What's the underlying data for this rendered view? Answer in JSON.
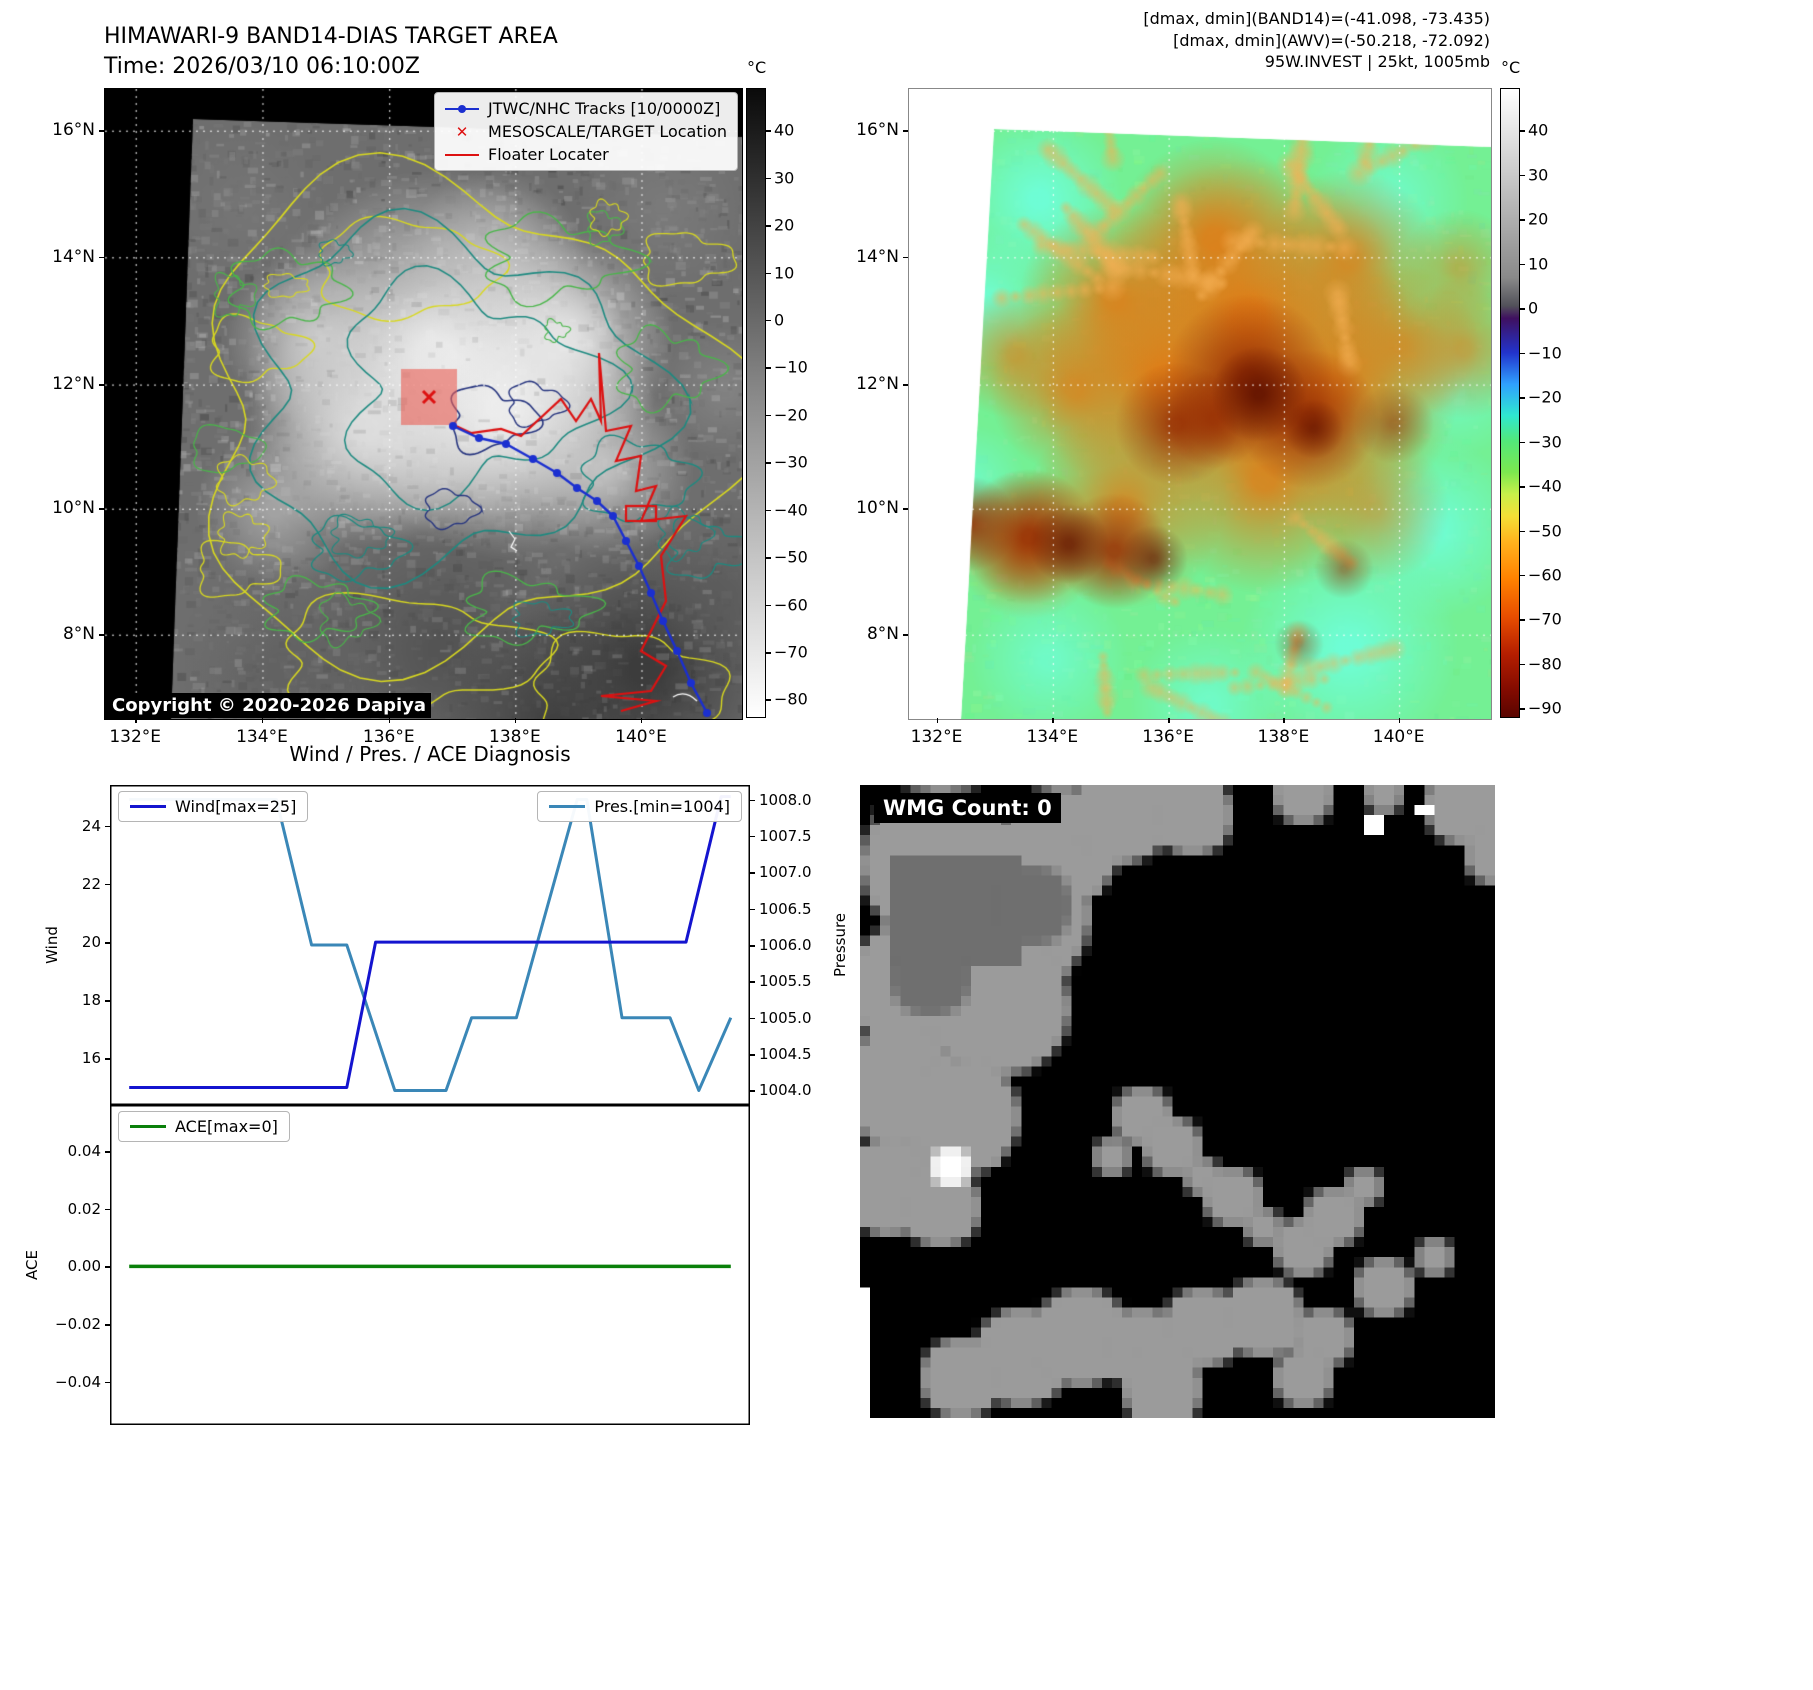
{
  "band14": {
    "title": "HIMAWARI-9 BAND14-DIAS TARGET AREA",
    "time_line": "Time: 2026/03/10 06:10:00Z",
    "copyright": "Copyright © 2020-2026 Dapiya",
    "legend": [
      {
        "label": "JTWC/NHC Tracks [10/0000Z]",
        "marker": "blue-line-dot",
        "color": "#1b2fd0"
      },
      {
        "label": "MESOSCALE/TARGET Location",
        "marker": "red-x",
        "color": "#dd1111"
      },
      {
        "label": "Floater Locater",
        "marker": "red-line",
        "color": "#dd1111"
      }
    ],
    "x_ticks": [
      "132°E",
      "134°E",
      "136°E",
      "138°E",
      "140°E"
    ],
    "y_ticks": [
      "16°N",
      "14°N",
      "12°N",
      "10°N",
      "8°N"
    ],
    "colorbar": {
      "unit": "°C",
      "ticks": [
        "40",
        "30",
        "20",
        "10",
        "0",
        "−10",
        "−20",
        "−30",
        "−40",
        "−50",
        "−60",
        "−70",
        "−80"
      ],
      "stops": [
        [
          0,
          "#0a0a0a"
        ],
        [
          0.5,
          "#8c8c8c"
        ],
        [
          1,
          "#ffffff"
        ]
      ]
    }
  },
  "awv": {
    "header_lines": [
      "[dmax, dmin](BAND14)=(-41.098, -73.435)",
      "[dmax, dmin](AWV)=(-50.218, -72.092)",
      "95W.INVEST | 25kt, 1005mb"
    ],
    "x_ticks": [
      "132°E",
      "134°E",
      "136°E",
      "138°E",
      "140°E"
    ],
    "y_ticks": [
      "16°N",
      "14°N",
      "12°N",
      "10°N",
      "8°N"
    ],
    "colorbar": {
      "unit": "°C",
      "ticks": [
        "40",
        "30",
        "20",
        "10",
        "0",
        "−10",
        "−20",
        "−30",
        "−40",
        "−50",
        "−60",
        "−70",
        "−80",
        "−90"
      ],
      "stops": [
        [
          0,
          "#ffffff"
        ],
        [
          0.3,
          "#8a8a8a"
        ],
        [
          0.345,
          "#52525a"
        ],
        [
          0.365,
          "#3f1060"
        ],
        [
          0.42,
          "#2233cc"
        ],
        [
          0.47,
          "#2fa0ff"
        ],
        [
          0.52,
          "#2fe8d0"
        ],
        [
          0.56,
          "#52e87a"
        ],
        [
          0.61,
          "#7ce84f"
        ],
        [
          0.645,
          "#c8f04a"
        ],
        [
          0.68,
          "#f4e036"
        ],
        [
          0.72,
          "#ffb41e"
        ],
        [
          0.78,
          "#ff8200"
        ],
        [
          0.84,
          "#e84e00"
        ],
        [
          0.9,
          "#b41e00"
        ],
        [
          0.96,
          "#800a00"
        ],
        [
          1,
          "#5a0500"
        ]
      ]
    }
  },
  "diagnosis": {
    "title": "Wind / Pres. / ACE Diagnosis",
    "wind_legend": "Wind[max=25]",
    "pres_legend": "Pres.[min=1004]",
    "ace_legend": "ACE[max=0]",
    "wind_ylabel": "Wind",
    "pres_ylabel": "Pressure",
    "ace_ylabel": "ACE",
    "wind_yticks": [
      "24",
      "22",
      "20",
      "18",
      "16"
    ],
    "pres_yticks": [
      "1008.0",
      "1007.5",
      "1007.0",
      "1006.5",
      "1006.0",
      "1005.5",
      "1005.0",
      "1004.5",
      "1004.0"
    ],
    "ace_yticks": [
      "0.04",
      "0.02",
      "0.00",
      "−0.02",
      "−0.04"
    ],
    "colors": {
      "wind": "#1414cf",
      "pres": "#3a87b7",
      "ace": "#0a800a"
    }
  },
  "wmg": {
    "count_label": "WMG Count: 0"
  },
  "chart_data": [
    {
      "type": "line",
      "title": "Wind / Pres. / ACE Diagnosis",
      "x_range": [
        0,
        1
      ],
      "legend_position": "top",
      "grid": false,
      "series": [
        {
          "name": "Wind[max=25]",
          "axis": "left",
          "axis_label": "Wind",
          "ylim": [
            14.4,
            25.4
          ],
          "points": [
            [
              0.03,
              15
            ],
            [
              0.37,
              15
            ],
            [
              0.415,
              20
            ],
            [
              0.9,
              20
            ],
            [
              0.955,
              25
            ],
            [
              0.97,
              25
            ]
          ]
        },
        {
          "name": "Pres.[min=1004]",
          "axis": "right",
          "axis_label": "Pressure",
          "ylim": [
            1003.8,
            1008.2
          ],
          "points": [
            [
              0.03,
              1008
            ],
            [
              0.26,
              1008
            ],
            [
              0.315,
              1006
            ],
            [
              0.37,
              1006
            ],
            [
              0.445,
              1004
            ],
            [
              0.525,
              1004
            ],
            [
              0.565,
              1005
            ],
            [
              0.635,
              1005
            ],
            [
              0.73,
              1008
            ],
            [
              0.745,
              1008
            ],
            [
              0.8,
              1005
            ],
            [
              0.875,
              1005
            ],
            [
              0.92,
              1004
            ],
            [
              0.97,
              1005
            ]
          ]
        }
      ]
    },
    {
      "type": "line",
      "grid": false,
      "series": [
        {
          "name": "ACE[max=0]",
          "axis": "left",
          "axis_label": "ACE",
          "ylim": [
            -0.055,
            0.056
          ],
          "points": [
            [
              0.03,
              0
            ],
            [
              0.97,
              0
            ]
          ]
        }
      ]
    }
  ]
}
